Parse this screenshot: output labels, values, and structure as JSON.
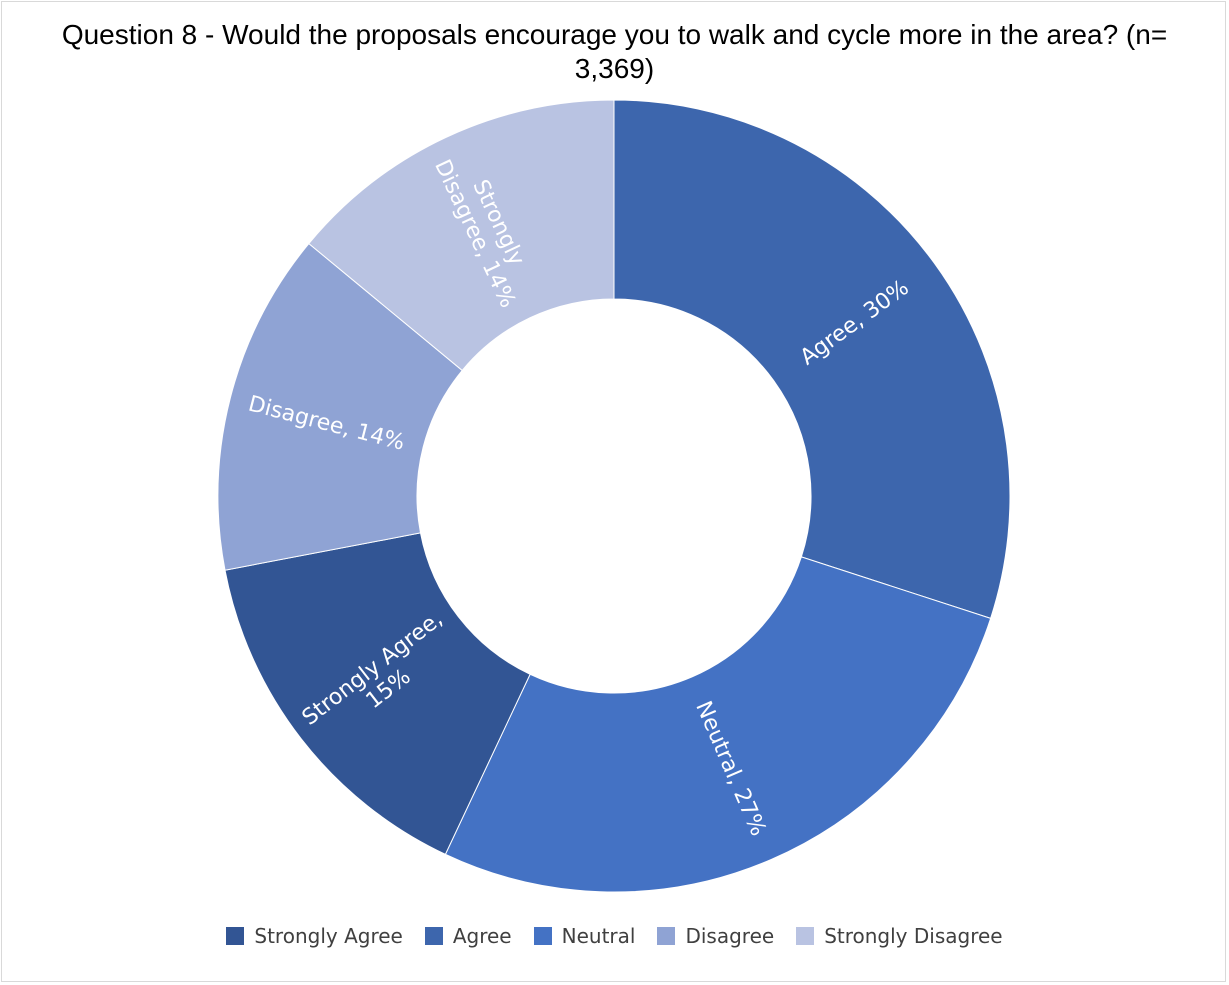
{
  "chart_data": {
    "type": "pie",
    "variant": "donut",
    "title": "Question 8 - Would the proposals encourage you to walk and cycle more in the area?  (n= 3,369)",
    "slices": [
      {
        "name": "Agree",
        "value": 30,
        "label": "Agree, 30%",
        "color": "#3d66ad"
      },
      {
        "name": "Neutral",
        "value": 27,
        "label": "Neutral, 27%",
        "color": "#4472c4"
      },
      {
        "name": "Strongly Agree",
        "value": 15,
        "label": "Strongly Agree, 15%",
        "label_lines": [
          "Strongly Agree,",
          "15%"
        ],
        "color": "#325594"
      },
      {
        "name": "Disagree",
        "value": 14,
        "label": "Disagree, 14%",
        "color": "#8fa3d4"
      },
      {
        "name": "Strongly Disagree",
        "value": 14,
        "label": "Strongly Disagree, 14%",
        "label_lines": [
          "Strongly",
          "Disagree, 14%"
        ],
        "color": "#b9c3e2"
      }
    ],
    "legend": {
      "position": "bottom",
      "entries": [
        {
          "name": "Strongly Agree",
          "color": "#325594"
        },
        {
          "name": "Agree",
          "color": "#3d66ad"
        },
        {
          "name": "Neutral",
          "color": "#4472c4"
        },
        {
          "name": "Disagree",
          "color": "#8fa3d4"
        },
        {
          "name": "Strongly Disagree",
          "color": "#b9c3e2"
        }
      ]
    },
    "label_color": "#ffffff"
  }
}
